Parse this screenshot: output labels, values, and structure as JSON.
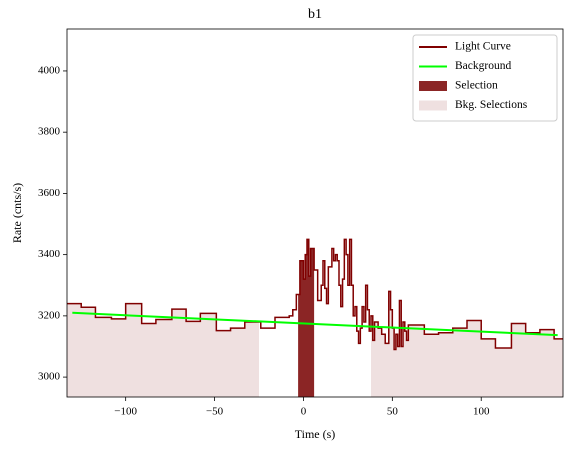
{
  "chart_data": {
    "type": "line",
    "title": "b1",
    "x_label": "Time (s)",
    "y_label": "Rate (cnts/s)",
    "xlim": [
      -133,
      146
    ],
    "ylim": [
      2935,
      4137
    ],
    "xticks": [
      {
        "value": -100,
        "label": "−100"
      },
      {
        "value": -50,
        "label": "−50"
      },
      0,
      50,
      100
    ],
    "yticks": [
      3000,
      3200,
      3400,
      3600,
      3800,
      4000
    ],
    "legend": "upper right",
    "series": [
      {
        "name": "Light Curve",
        "color": "#800000",
        "style": "step",
        "x": [
          -133,
          -125,
          -117,
          -108,
          -100,
          -91,
          -83,
          -74,
          -66,
          -58,
          -49,
          -41,
          -33,
          -24,
          -16,
          -8,
          -6,
          -4,
          -2,
          0,
          1,
          2,
          3,
          4,
          6,
          8,
          10,
          11,
          12,
          13,
          14,
          16,
          17,
          18,
          19,
          20,
          21,
          22,
          23,
          24,
          25,
          26,
          27,
          28,
          29,
          30,
          31,
          32,
          33,
          34,
          35,
          36,
          37,
          38,
          39,
          40,
          42,
          44,
          46,
          48,
          49,
          50,
          51,
          52,
          53,
          54,
          55,
          56,
          57,
          58,
          59,
          60,
          68,
          76,
          84,
          92,
          100,
          108,
          117,
          125,
          133,
          141
        ],
        "values": [
          3240,
          3228,
          3195,
          3190,
          3240,
          3175,
          3188,
          3222,
          3182,
          3208,
          3152,
          3160,
          3180,
          3160,
          3195,
          3200,
          3220,
          3270,
          3380,
          3320,
          3400,
          3450,
          3330,
          3420,
          3350,
          3250,
          3300,
          3380,
          3290,
          3240,
          3360,
          3420,
          3380,
          3400,
          3380,
          3300,
          3230,
          3320,
          3450,
          3400,
          3300,
          3450,
          3300,
          3200,
          3230,
          3150,
          3110,
          3160,
          3230,
          3180,
          3300,
          3220,
          3150,
          3200,
          3120,
          3180,
          3160,
          3140,
          3110,
          3280,
          3220,
          3160,
          3090,
          3140,
          3100,
          3250,
          3100,
          3180,
          3150,
          3120,
          3170,
          3170,
          3140,
          3145,
          3160,
          3185,
          3125,
          3095,
          3175,
          3145,
          3155,
          3125
        ]
      },
      {
        "name": "Background",
        "color": "#00ff00",
        "style": "line",
        "x": [
          -130,
          143
        ],
        "values": [
          3210,
          3137
        ]
      }
    ],
    "regions": [
      {
        "name": "Selection",
        "color": "#8b2525",
        "ranges": [
          [
            -3,
            6
          ]
        ]
      },
      {
        "name": "Bkg. Selections",
        "color": "#efe0e0",
        "ranges": [
          [
            -133,
            -25
          ],
          [
            38,
            146
          ]
        ]
      }
    ]
  }
}
